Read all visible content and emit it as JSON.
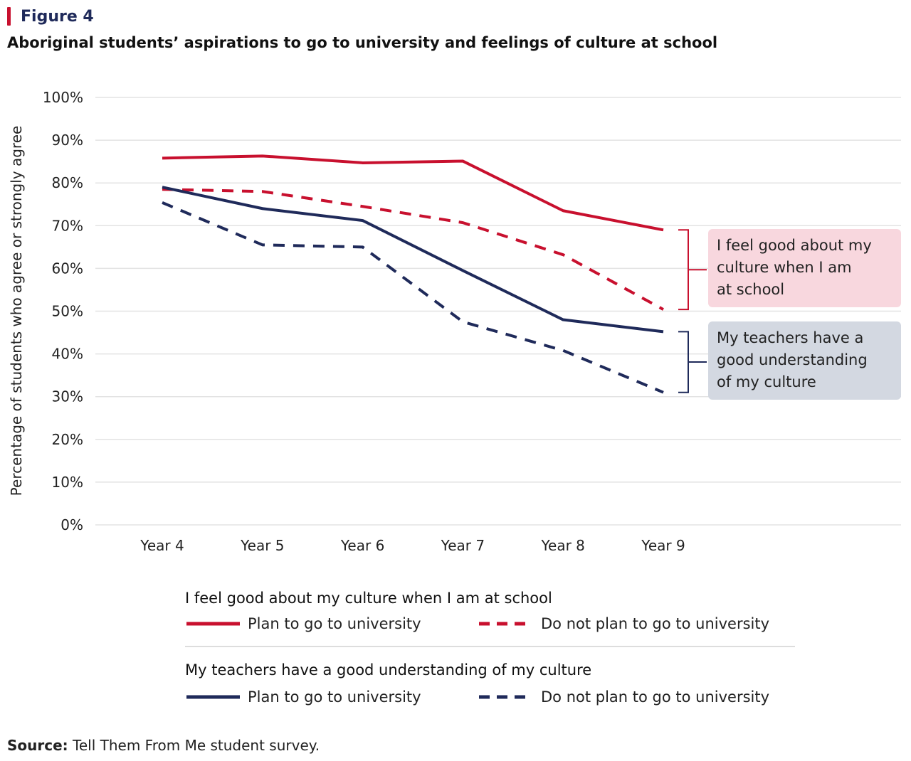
{
  "figure_label": "Figure 4",
  "title": "Aboriginal students’ aspirations to go to university and feelings of culture at school",
  "source_label": "Source:",
  "source_text": " Tell Them From Me student survey.",
  "colors": {
    "red": "#c8102e",
    "navy": "#1f2a5a",
    "grid": "#e3e3e3",
    "annotation_red_bg": "#f8d7de",
    "annotation_navy_bg": "#d3d8e1",
    "legend_divider": "#dddddd"
  },
  "annotations": [
    {
      "lines": [
        "I feel good about my",
        "culture when I am",
        "at school"
      ],
      "color_key": "red"
    },
    {
      "lines": [
        "My teachers have a",
        "good understanding",
        "of my culture"
      ],
      "color_key": "navy"
    }
  ],
  "legend": {
    "groups": [
      {
        "heading": "I feel good about my culture when I am at school",
        "items": [
          {
            "label": "Plan to go to university",
            "color_key": "red",
            "dashed": false
          },
          {
            "label": "Do not plan to go to university",
            "color_key": "red",
            "dashed": true
          }
        ]
      },
      {
        "heading": "My teachers have a good understanding of my culture",
        "items": [
          {
            "label": "Plan to go to university",
            "color_key": "navy",
            "dashed": false
          },
          {
            "label": "Do not plan to go to university",
            "color_key": "navy",
            "dashed": true
          }
        ]
      }
    ]
  },
  "chart_data": {
    "type": "line",
    "title": "Aboriginal students’ aspirations to go to university and feelings of culture at school",
    "xlabel": "",
    "ylabel": "Percentage of students who agree or strongly agree",
    "categories": [
      "Year 4",
      "Year 5",
      "Year 6",
      "Year 7",
      "Year 8",
      "Year 9"
    ],
    "ylim": [
      0,
      100
    ],
    "yticks": [
      0,
      10,
      20,
      30,
      40,
      50,
      60,
      70,
      80,
      90,
      100
    ],
    "ytick_labels": [
      "0%",
      "10%",
      "20%",
      "30%",
      "40%",
      "50%",
      "60%",
      "70%",
      "80%",
      "90%",
      "100%"
    ],
    "grid": true,
    "legend_position": "bottom",
    "series": [
      {
        "name": "I feel good about my culture when I am at school — Plan to go to university",
        "color_key": "red",
        "dashed": false,
        "values": [
          85.8,
          86.3,
          84.7,
          85.1,
          73.5,
          69.0
        ]
      },
      {
        "name": "I feel good about my culture when I am at school — Do not plan to go to university",
        "color_key": "red",
        "dashed": true,
        "values": [
          78.5,
          78.0,
          74.5,
          70.7,
          63.2,
          50.4
        ]
      },
      {
        "name": "My teachers have a good understanding of my culture — Plan to go to university",
        "color_key": "navy",
        "dashed": false,
        "values": [
          79.0,
          74.0,
          71.2,
          59.5,
          48.0,
          45.2
        ]
      },
      {
        "name": "My teachers have a good understanding of my culture — Do not plan to go to university",
        "color_key": "navy",
        "dashed": true,
        "values": [
          75.4,
          65.5,
          65.0,
          47.5,
          40.8,
          31.0
        ]
      }
    ]
  }
}
